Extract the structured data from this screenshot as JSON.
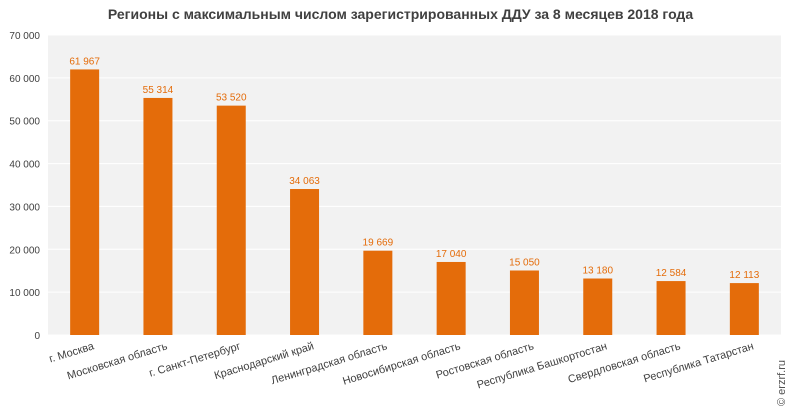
{
  "chart_data": {
    "type": "bar",
    "title": "Регионы с максимальным числом зарегистрированных ДДУ за 8 месяцев 2018 года",
    "categories": [
      "г. Москва",
      "Московская область",
      "г. Санкт-Петербург",
      "Краснодарский край",
      "Ленинградская область",
      "Новосибирская область",
      "Ростовская область",
      "Республика Башкортостан",
      "Свердловская область",
      "Республика Татарстан"
    ],
    "values": [
      61967,
      55314,
      53520,
      34063,
      19669,
      17040,
      15050,
      13180,
      12584,
      12113
    ],
    "value_labels": [
      "61 967",
      "55 314",
      "53 520",
      "34 063",
      "19 669",
      "17 040",
      "15 050",
      "13 180",
      "12 584",
      "12 113"
    ],
    "ylim": [
      0,
      70000
    ],
    "y_ticks": [
      0,
      10000,
      20000,
      30000,
      40000,
      50000,
      60000,
      70000
    ],
    "y_tick_labels": [
      "0",
      "10 000",
      "20 000",
      "30 000",
      "40 000",
      "50 000",
      "60 000",
      "70 000"
    ],
    "grid": true,
    "xlabel": "",
    "ylabel": ""
  },
  "colors": {
    "bar": "#E46C0A",
    "value_label": "#E46C0A",
    "plot_background": "#F2F2F2",
    "grid": "#FFFFFF",
    "axis_text": "#404040"
  },
  "watermark": "© erzrf.ru"
}
